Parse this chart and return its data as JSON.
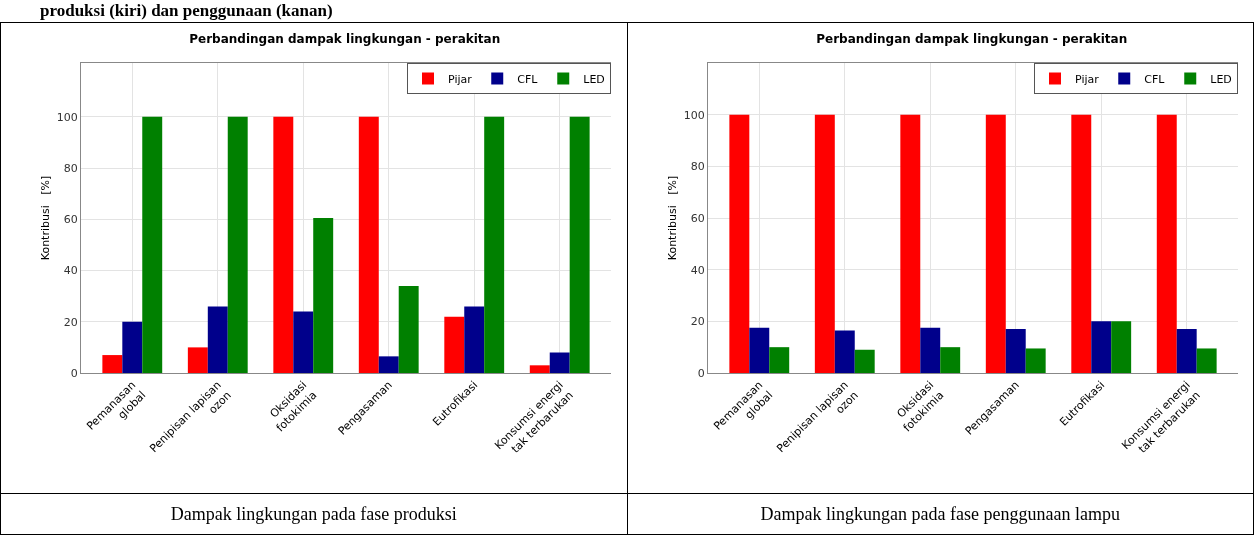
{
  "chart_data": [
    {
      "type": "bar",
      "title": "Perbandingan dampak lingkungan - perakitan",
      "ylabel": "Kontribusi   [%]",
      "categories": [
        "Pemanasan global",
        "Penipisan lapisan ozon",
        "Oksidasi fotokimia",
        "Pengasaman",
        "Eutrofikasi",
        "Konsumsi energi tak terbarukan"
      ],
      "series": [
        {
          "name": "Pijar",
          "color": "#ff0000",
          "values": [
            7,
            10,
            100,
            100,
            22,
            3
          ]
        },
        {
          "name": "CFL",
          "color": "#00008b",
          "values": [
            20,
            26,
            24,
            6.5,
            26,
            8
          ]
        },
        {
          "name": "LED",
          "color": "#008000",
          "values": [
            100,
            100,
            60.5,
            34,
            100,
            100
          ]
        }
      ],
      "ylim": [
        0,
        121
      ],
      "yticks": [
        0,
        20,
        40,
        60,
        80,
        100
      ],
      "grid": true,
      "legend": "top right",
      "annotations": [
        "produksi (kiri) dan penggunaan (kanan)",
        "Dampak lingkungan pada fase produksi"
      ]
    },
    {
      "type": "bar",
      "title": "Perbandingan dampak lingkungan - perakitan",
      "ylabel": "Kontribusi   [%]",
      "categories": [
        "Pemanasan global",
        "Penipisan lapisan ozon",
        "Oksidasi fotokimia",
        "Pengasaman",
        "Eutrofikasi",
        "Konsumsi energi tak terbarukan"
      ],
      "series": [
        {
          "name": "Pijar",
          "color": "#ff0000",
          "values": [
            100,
            100,
            100,
            100,
            100,
            100
          ]
        },
        {
          "name": "CFL",
          "color": "#00008b",
          "values": [
            17.5,
            16.5,
            17.5,
            17,
            20,
            17
          ]
        },
        {
          "name": "LED",
          "color": "#008000",
          "values": [
            10,
            9,
            10,
            9.5,
            20,
            9.5
          ]
        }
      ],
      "ylim": [
        0,
        120
      ],
      "yticks": [
        0,
        20,
        40,
        60,
        80,
        100
      ],
      "grid": true,
      "legend": "top right",
      "annotations": [
        "Dampak lingkungan pada fase penggunaan lampu"
      ]
    }
  ]
}
